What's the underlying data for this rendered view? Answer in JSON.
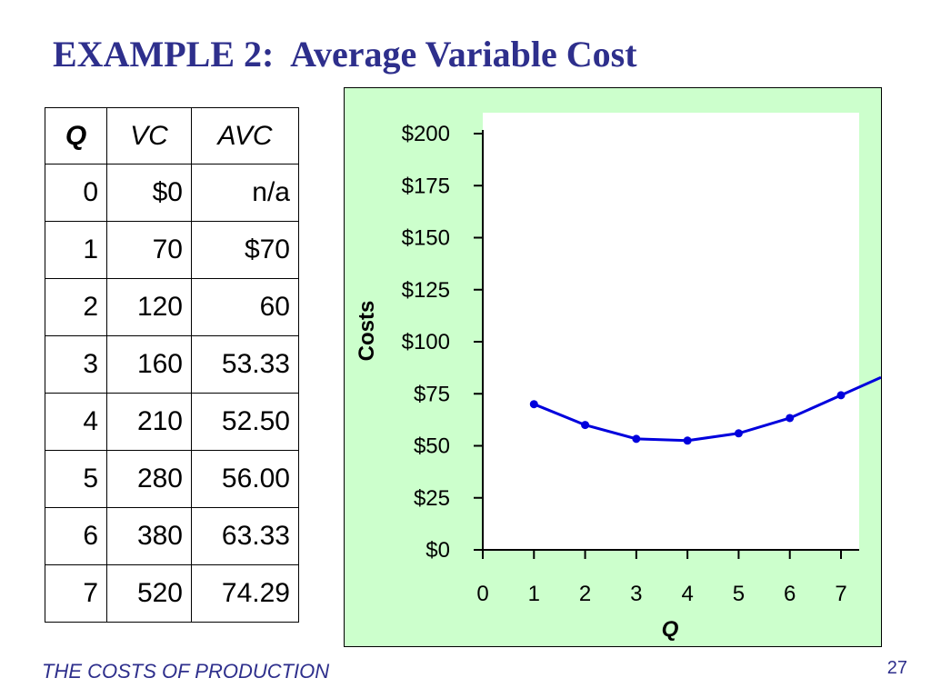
{
  "slide": {
    "title": "EXAMPLE 2:  Average Variable Cost",
    "footer": "THE COSTS OF PRODUCTION",
    "page_number": "27"
  },
  "table": {
    "headers": [
      "Q",
      "VC",
      "AVC"
    ],
    "rows": [
      [
        "0",
        "$0",
        "n/a"
      ],
      [
        "1",
        "70",
        "$70"
      ],
      [
        "2",
        "120",
        "60"
      ],
      [
        "3",
        "160",
        "53.33"
      ],
      [
        "4",
        "210",
        "52.50"
      ],
      [
        "5",
        "280",
        "56.00"
      ],
      [
        "6",
        "380",
        "63.33"
      ],
      [
        "7",
        "520",
        "74.29"
      ]
    ]
  },
  "chart_data": {
    "type": "line",
    "title": "",
    "xlabel": "Q",
    "ylabel": "Costs",
    "xlim": [
      0,
      7
    ],
    "ylim": [
      0,
      200
    ],
    "x_ticks": [
      "0",
      "1",
      "2",
      "3",
      "4",
      "5",
      "6",
      "7"
    ],
    "y_ticks": [
      "$0",
      "$25",
      "$50",
      "$75",
      "$100",
      "$125",
      "$150",
      "$175",
      "$200"
    ],
    "series": [
      {
        "x": [
          1,
          2,
          3,
          4,
          5,
          6,
          7
        ],
        "values": [
          70,
          60,
          53.33,
          52.5,
          56,
          63.33,
          74.29
        ],
        "color": "#0000DD"
      }
    ],
    "grid": false,
    "legend": "none",
    "background_color": "#CCFFCC",
    "plot_area_color": "#FFFFFF"
  }
}
